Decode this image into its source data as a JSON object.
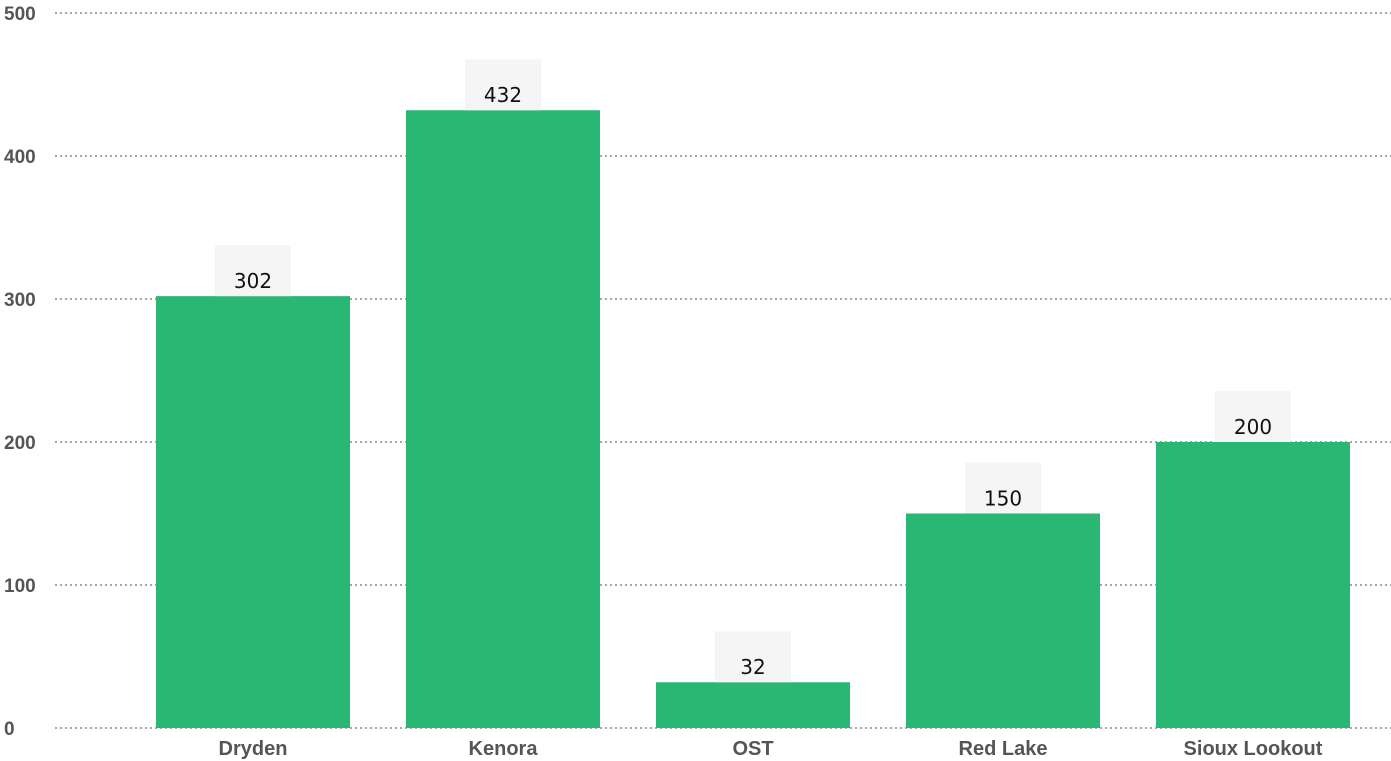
{
  "chart_data": {
    "type": "bar",
    "categories": [
      "Dryden",
      "Kenora",
      "OST",
      "Red Lake",
      "Sioux Lookout"
    ],
    "values": [
      302,
      432,
      32,
      150,
      200
    ],
    "data_labels": [
      "302",
      "432",
      "32",
      "150",
      "200"
    ],
    "title": "",
    "xlabel": "",
    "ylabel": "",
    "ylim": [
      0,
      500
    ],
    "yticks": [
      "0",
      "100",
      "200",
      "300",
      "400",
      "500"
    ],
    "grid": true,
    "grid_style": "dotted",
    "legend": "none",
    "bar_color": "#2ab673",
    "label_background": "#f5f5f5"
  }
}
